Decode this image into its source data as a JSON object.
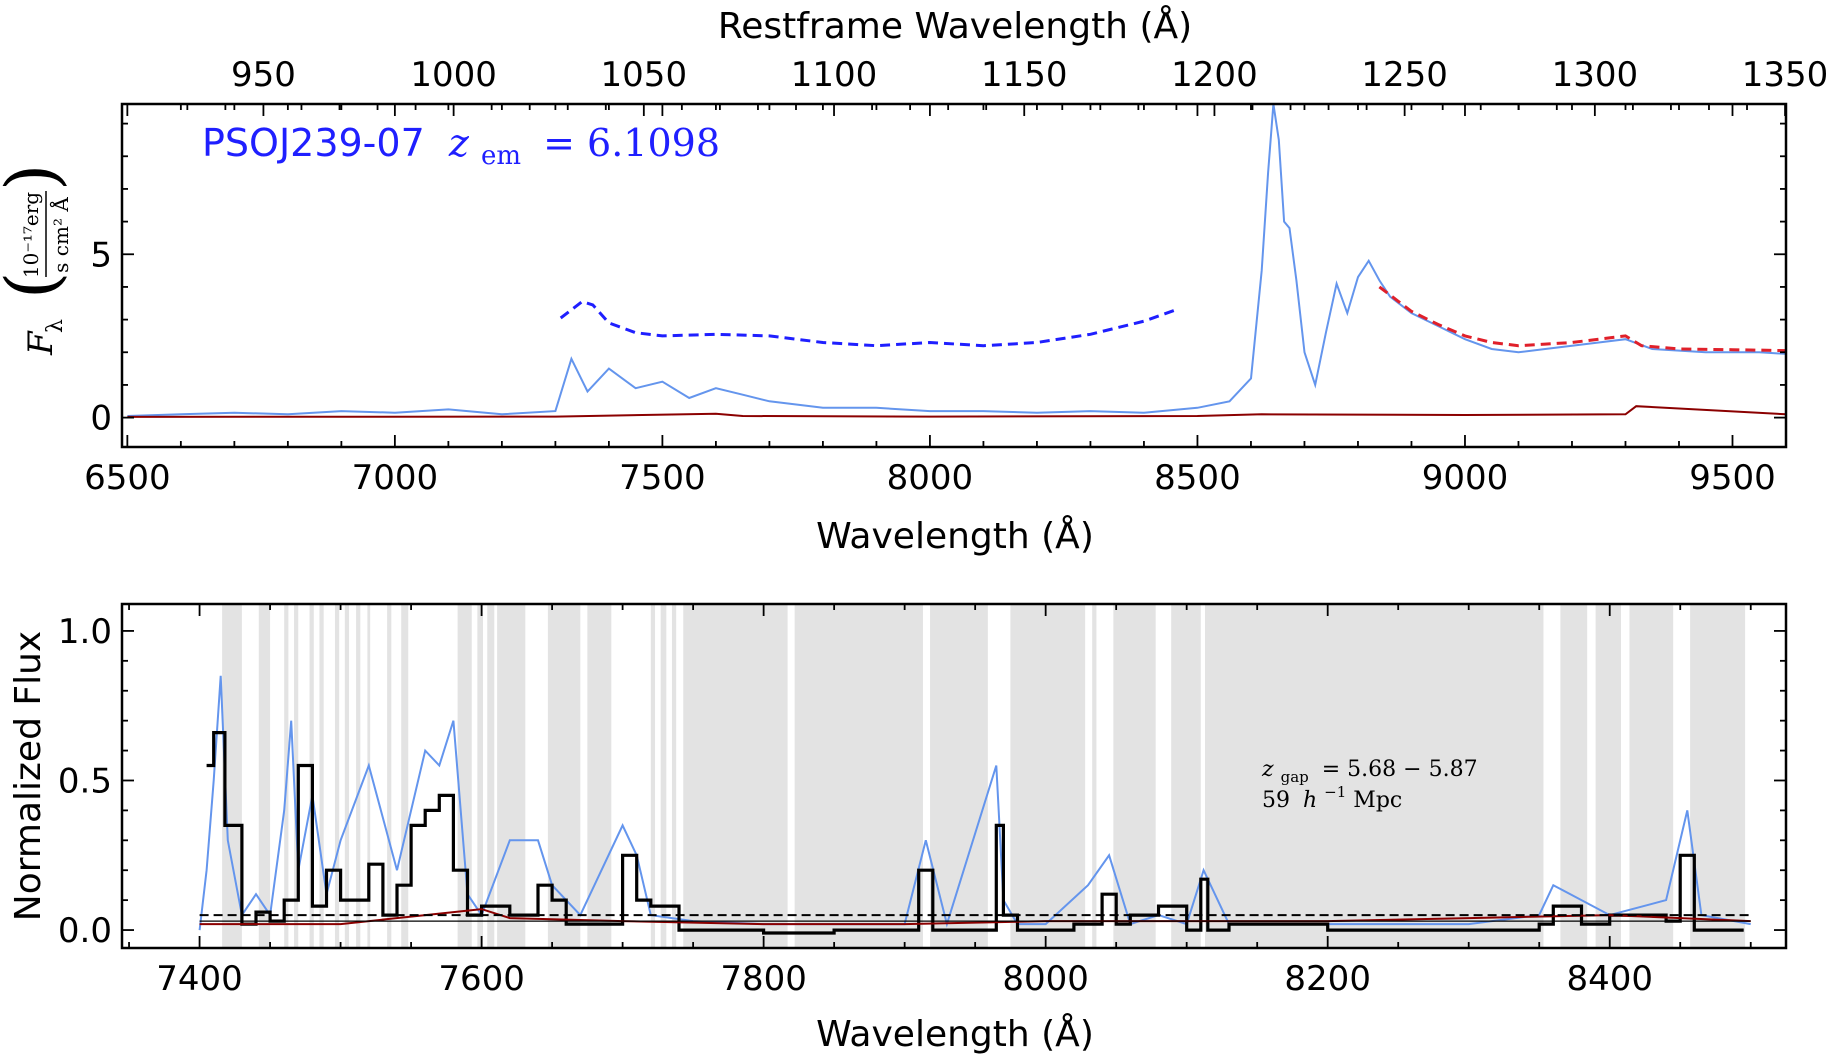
{
  "chart_data": [
    {
      "panel": "top",
      "type": "line",
      "annotation": {
        "object": "PSOJ239-07",
        "redshift_symbol": "z",
        "redshift_subscript": "em",
        "redshift_value": "= 6.1098",
        "color": "#1f1fff"
      },
      "xlabel": "Wavelength (Å)",
      "xlabel_top": "Restframe Wavelength (Å)",
      "ylabel": {
        "symbol": "F",
        "subscript": "λ",
        "unit_numerator": "10⁻¹⁷erg",
        "unit_denominator": "s cm² Å"
      },
      "xlim": [
        6490,
        9600
      ],
      "ylim": [
        -0.9,
        9.6
      ],
      "x_ticks": [
        6500,
        7000,
        7500,
        8000,
        8500,
        9000,
        9500
      ],
      "y_ticks": [
        0,
        5
      ],
      "top_ticks": [
        950,
        1000,
        1050,
        1100,
        1150,
        1200,
        1250,
        1300,
        1350
      ],
      "redshift": 6.1098,
      "series": [
        {
          "style": "solid",
          "color": "#6495ed",
          "x": [
            6500,
            6600,
            6700,
            6800,
            6900,
            7000,
            7100,
            7200,
            7300,
            7330,
            7360,
            7400,
            7450,
            7500,
            7550,
            7600,
            7650,
            7700,
            7750,
            7800,
            7900,
            8000,
            8100,
            8200,
            8300,
            8400,
            8500,
            8560,
            8600,
            8620,
            8632,
            8642,
            8652,
            8662,
            8672,
            8685,
            8700,
            8720,
            8740,
            8760,
            8780,
            8800,
            8820,
            8840,
            8860,
            8900,
            8950,
            9000,
            9050,
            9100,
            9150,
            9200,
            9250,
            9300,
            9350,
            9400,
            9450,
            9500,
            9550,
            9600
          ],
          "y": [
            0.05,
            0.1,
            0.15,
            0.1,
            0.2,
            0.15,
            0.25,
            0.1,
            0.2,
            1.8,
            0.8,
            1.5,
            0.9,
            1.1,
            0.6,
            0.9,
            0.7,
            0.5,
            0.4,
            0.3,
            0.3,
            0.2,
            0.2,
            0.15,
            0.2,
            0.15,
            0.3,
            0.5,
            1.2,
            4.5,
            7.5,
            9.6,
            8.5,
            6.0,
            5.8,
            4.2,
            2.0,
            1.0,
            2.6,
            4.1,
            3.2,
            4.3,
            4.8,
            4.2,
            3.7,
            3.2,
            2.8,
            2.4,
            2.1,
            2.0,
            2.1,
            2.2,
            2.3,
            2.4,
            2.1,
            2.05,
            2.0,
            2.0,
            2.0,
            1.95
          ]
        },
        {
          "style": "solid",
          "color": "#8b0000",
          "x": [
            6500,
            7300,
            7600,
            7650,
            8000,
            8500,
            8620,
            9000,
            9300,
            9320,
            9600
          ],
          "y": [
            0.02,
            0.03,
            0.12,
            0.05,
            0.03,
            0.05,
            0.1,
            0.08,
            0.1,
            0.35,
            0.1
          ]
        },
        {
          "style": "dashed",
          "color": "#1f1fff",
          "x": [
            7310,
            7350,
            7370,
            7400,
            7450,
            7500,
            7600,
            7700,
            7800,
            7900,
            8000,
            8100,
            8200,
            8300,
            8400,
            8460
          ],
          "y": [
            3.05,
            3.55,
            3.45,
            2.9,
            2.6,
            2.5,
            2.55,
            2.5,
            2.3,
            2.2,
            2.3,
            2.2,
            2.3,
            2.55,
            2.95,
            3.3
          ]
        },
        {
          "style": "dashed",
          "color": "#e0202a",
          "x": [
            8840,
            8900,
            8950,
            9000,
            9050,
            9100,
            9150,
            9200,
            9250,
            9300,
            9330,
            9400,
            9500,
            9600
          ],
          "y": [
            4.0,
            3.25,
            2.85,
            2.5,
            2.3,
            2.2,
            2.25,
            2.3,
            2.4,
            2.5,
            2.2,
            2.1,
            2.08,
            2.05
          ]
        }
      ]
    },
    {
      "panel": "bottom",
      "type": "line",
      "xlabel": "Wavelength (Å)",
      "ylabel": "Normalized Flux",
      "xlim": [
        7345,
        8525
      ],
      "ylim": [
        -0.06,
        1.09
      ],
      "x_ticks": [
        7400,
        7600,
        7800,
        8000,
        8200,
        8400
      ],
      "y_ticks": [
        "0.0",
        "0.5",
        "1.0"
      ],
      "annotation": {
        "line1_symbol": "z",
        "line1_subscript": "gap",
        "line1_rest": "= 5.68 − 5.87",
        "line2_prefix": "59 ",
        "line2_h": "h",
        "line2_sup": "−1",
        "line2_unit": " Mpc"
      },
      "shaded_regions": [
        [
          7416,
          7430
        ],
        [
          7442,
          7450
        ],
        [
          7460,
          7463
        ],
        [
          7467,
          7470
        ],
        [
          7478,
          7481
        ],
        [
          7485,
          7488
        ],
        [
          7496,
          7499
        ],
        [
          7503,
          7506
        ],
        [
          7511,
          7514
        ],
        [
          7519,
          7521
        ],
        [
          7533,
          7536
        ],
        [
          7543,
          7548
        ],
        [
          7583,
          7593
        ],
        [
          7597,
          7601
        ],
        [
          7604,
          7609
        ],
        [
          7611,
          7631
        ],
        [
          7647,
          7670
        ],
        [
          7675,
          7692
        ],
        [
          7720,
          7723
        ],
        [
          7727,
          7731
        ],
        [
          7735,
          7738
        ],
        [
          7743,
          7817
        ],
        [
          7822,
          7913
        ],
        [
          7918,
          7959
        ],
        [
          7975,
          8028
        ],
        [
          8033,
          8036
        ],
        [
          8048,
          8078
        ],
        [
          8089,
          8110
        ],
        [
          8113,
          8353
        ],
        [
          8365,
          8384
        ],
        [
          8390,
          8408
        ],
        [
          8414,
          8445
        ],
        [
          8457,
          8496
        ]
      ],
      "series": [
        {
          "style": "solid",
          "color": "#6495ed",
          "x": [
            7400,
            7405,
            7410,
            7415,
            7420,
            7430,
            7440,
            7450,
            7460,
            7465,
            7470,
            7480,
            7490,
            7500,
            7520,
            7540,
            7560,
            7570,
            7580,
            7590,
            7600,
            7620,
            7640,
            7650,
            7670,
            7700,
            7710,
            7720,
            7750,
            7800,
            7850,
            7900,
            7915,
            7930,
            7965,
            7970,
            7980,
            8000,
            8030,
            8045,
            8060,
            8080,
            8100,
            8112,
            8130,
            8200,
            8300,
            8350,
            8360,
            8400,
            8440,
            8455,
            8465,
            8500
          ],
          "y": [
            0.0,
            0.2,
            0.5,
            0.85,
            0.3,
            0.05,
            0.12,
            0.05,
            0.4,
            0.7,
            0.2,
            0.45,
            0.12,
            0.3,
            0.55,
            0.2,
            0.6,
            0.55,
            0.7,
            0.12,
            0.05,
            0.3,
            0.3,
            0.15,
            0.05,
            0.35,
            0.25,
            0.05,
            0.03,
            0.02,
            0.02,
            0.02,
            0.3,
            0.02,
            0.55,
            0.1,
            0.02,
            0.02,
            0.15,
            0.25,
            0.02,
            0.05,
            0.02,
            0.2,
            0.02,
            0.02,
            0.02,
            0.05,
            0.15,
            0.05,
            0.1,
            0.4,
            0.05,
            0.02
          ]
        },
        {
          "style": "step",
          "color": "#000000",
          "x": [
            7405,
            7410,
            7418,
            7430,
            7440,
            7450,
            7460,
            7470,
            7480,
            7490,
            7500,
            7510,
            7520,
            7530,
            7540,
            7550,
            7560,
            7570,
            7580,
            7590,
            7600,
            7620,
            7640,
            7650,
            7660,
            7700,
            7710,
            7720,
            7740,
            7800,
            7850,
            7900,
            7910,
            7920,
            7965,
            7970,
            7980,
            8000,
            8020,
            8040,
            8050,
            8060,
            8080,
            8100,
            8110,
            8115,
            8130,
            8200,
            8300,
            8350,
            8360,
            8380,
            8400,
            8440,
            8450,
            8460,
            8495
          ],
          "y": [
            0.55,
            0.66,
            0.35,
            0.02,
            0.06,
            0.03,
            0.1,
            0.55,
            0.08,
            0.2,
            0.1,
            0.1,
            0.22,
            0.05,
            0.15,
            0.35,
            0.4,
            0.45,
            0.2,
            0.05,
            0.08,
            0.05,
            0.15,
            0.1,
            0.02,
            0.25,
            0.1,
            0.08,
            0.0,
            -0.01,
            0.0,
            0.0,
            0.2,
            0.0,
            0.35,
            0.05,
            0.0,
            0.0,
            0.02,
            0.12,
            0.02,
            0.05,
            0.08,
            0.0,
            0.17,
            0.0,
            0.02,
            0.0,
            0.0,
            0.02,
            0.08,
            0.02,
            0.05,
            0.03,
            0.25,
            0.0,
            0.0
          ]
        },
        {
          "style": "solid",
          "color": "#8b0000",
          "x": [
            7400,
            7500,
            7560,
            7600,
            7620,
            7700,
            7800,
            7900,
            8000,
            8100,
            8200,
            8300,
            8400,
            8500
          ],
          "y": [
            0.02,
            0.02,
            0.05,
            0.07,
            0.04,
            0.03,
            0.02,
            0.02,
            0.03,
            0.03,
            0.03,
            0.04,
            0.05,
            0.03
          ]
        },
        {
          "style": "hline-dashed",
          "color": "#000000",
          "x": [
            7400,
            8500
          ],
          "y": [
            0.05,
            0.05
          ]
        },
        {
          "style": "hline-solid",
          "color": "#000000",
          "x": [
            7400,
            8500
          ],
          "y": [
            0.03,
            0.03
          ]
        }
      ]
    }
  ]
}
